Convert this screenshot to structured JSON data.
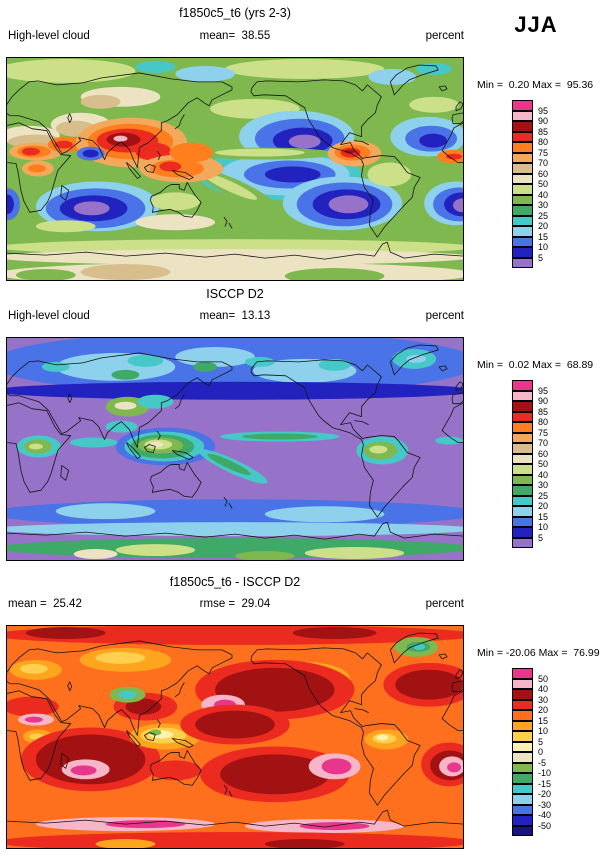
{
  "season": "JJA",
  "panels": [
    {
      "title": "f1850c5_t6 (yrs 2-3)",
      "left_label": "High-level cloud",
      "center_label": "mean=  38.55",
      "right_label": "percent",
      "minmax": "Min =  0.20 Max =  95.36",
      "colorbar_labels": [
        "95",
        "90",
        "85",
        "80",
        "75",
        "70",
        "60",
        "50",
        "40",
        "30",
        "25",
        "20",
        "15",
        "10",
        "5"
      ],
      "palette": [
        "#E8368C",
        "#F7B6C8",
        "#A31212",
        "#EB2A20",
        "#FF7E1E",
        "#F2A95C",
        "#D8BE8C",
        "#EBE3C1",
        "#CCE08A",
        "#7EB84E",
        "#3FA968",
        "#46C8C8",
        "#8ED1EC",
        "#4973E6",
        "#2222BE",
        "#9673C8"
      ]
    },
    {
      "title": "ISCCP D2",
      "left_label": "High-level cloud",
      "center_label": "mean=  13.13",
      "right_label": "percent",
      "minmax": "Min =  0.02 Max =  68.89",
      "colorbar_labels": [
        "95",
        "90",
        "85",
        "80",
        "75",
        "70",
        "60",
        "50",
        "40",
        "30",
        "25",
        "20",
        "15",
        "10",
        "5"
      ],
      "palette": [
        "#E8368C",
        "#F7B6C8",
        "#A31212",
        "#EB2A20",
        "#FF7E1E",
        "#F2A95C",
        "#D8BE8C",
        "#EBE3C1",
        "#CCE08A",
        "#7EB84E",
        "#3FA968",
        "#46C8C8",
        "#8ED1EC",
        "#4973E6",
        "#2222BE",
        "#9673C8"
      ]
    },
    {
      "title": "f1850c5_t6 - ISCCP D2",
      "left_label": "mean =  25.42",
      "center_label": "rmse =  29.04",
      "right_label": "percent",
      "minmax": "Min = -20.06 Max =  76.99",
      "colorbar_labels": [
        "50",
        "40",
        "30",
        "20",
        "15",
        "10",
        "5",
        "0",
        "-5",
        "-10",
        "-15",
        "-20",
        "-30",
        "-40",
        "-50"
      ],
      "palette": [
        "#E8368C",
        "#F7B6C8",
        "#A31212",
        "#EB2A20",
        "#FF701E",
        "#FFA41E",
        "#FFD04D",
        "#FFF2AE",
        "#EBE3C1",
        "#7EB84E",
        "#3FA968",
        "#46C8C8",
        "#8ED1EC",
        "#4973E6",
        "#2222BE",
        "#15157A"
      ]
    }
  ],
  "chart_data": {
    "type": "heatmap",
    "subtype": "3-panel global lat-lon filled-contour comparison (model vs observations vs difference)",
    "season": "JJA",
    "variable": "High-level cloud",
    "units": "percent",
    "panels": [
      {
        "name": "f1850c5_t6 (yrs 2-3)",
        "mean": 38.55,
        "min": 0.2,
        "max": 95.36,
        "contour_levels": [
          5,
          10,
          15,
          20,
          25,
          30,
          40,
          50,
          60,
          70,
          75,
          80,
          85,
          90,
          95
        ]
      },
      {
        "name": "ISCCP D2",
        "mean": 13.13,
        "min": 0.02,
        "max": 68.89,
        "contour_levels": [
          5,
          10,
          15,
          20,
          25,
          30,
          40,
          50,
          60,
          70,
          75,
          80,
          85,
          90,
          95
        ]
      },
      {
        "name": "f1850c5_t6 - ISCCP D2",
        "mean": 25.42,
        "rmse": 29.04,
        "min": -20.06,
        "max": 76.99,
        "contour_levels": [
          -50,
          -40,
          -30,
          -20,
          -15,
          -10,
          -5,
          0,
          5,
          10,
          15,
          20,
          30,
          40,
          50
        ]
      }
    ]
  }
}
